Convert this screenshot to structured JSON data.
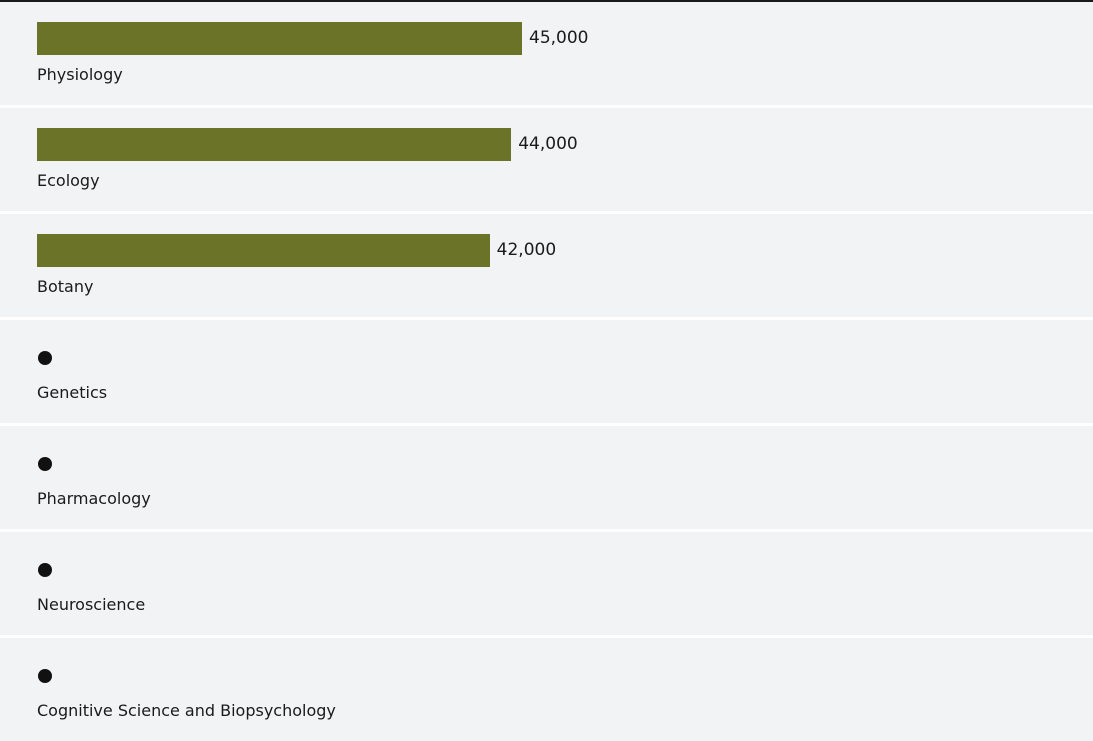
{
  "chart_data": {
    "type": "bar",
    "orientation": "horizontal",
    "categories": [
      "Physiology",
      "Ecology",
      "Botany",
      "Genetics",
      "Pharmacology",
      "Neuroscience",
      "Cognitive Science and Biopsychology"
    ],
    "values": [
      45000,
      44000,
      42000,
      null,
      null,
      null,
      null
    ],
    "value_labels": [
      "45,000",
      "44,000",
      "42,000",
      "",
      "",
      "",
      ""
    ],
    "bar_color": "#6b7329",
    "missing_marker_color": "#111111",
    "grid": false,
    "legend": "none"
  }
}
